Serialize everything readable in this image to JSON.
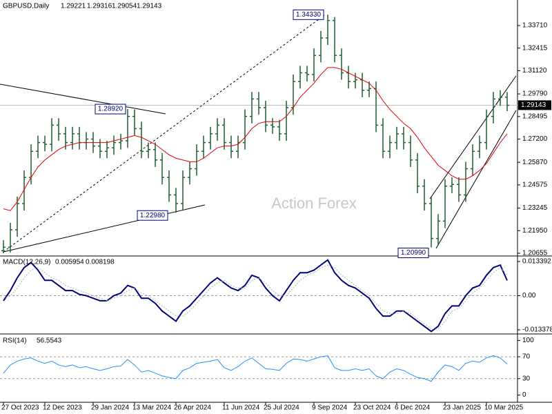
{
  "chart_data": [
    {
      "type": "ohlc",
      "title": "GBPUSD,Daily",
      "quote": {
        "open": 1.29221,
        "high": 1.29316,
        "low": 1.29054,
        "close": 1.29143
      },
      "watermark": "Action Forex",
      "color": "#1d5e33",
      "categories": [
        "27 Oct 2023",
        null,
        null,
        null,
        null,
        null,
        "12 Dec 2023",
        null,
        null,
        null,
        null,
        null,
        null,
        "29 Jan 2024",
        null,
        null,
        null,
        null,
        null,
        "13 Mar 2024",
        null,
        null,
        null,
        null,
        null,
        "26 Apr 2024",
        null,
        null,
        null,
        null,
        null,
        null,
        "11 Jun 2024",
        null,
        null,
        null,
        null,
        null,
        "25 Jul 2024",
        null,
        null,
        null,
        null,
        null,
        null,
        "9 Sep 2024",
        null,
        null,
        null,
        null,
        null,
        "23 Oct 2024",
        null,
        null,
        null,
        null,
        null,
        "6 Dec 2024",
        null,
        null,
        null,
        null,
        null,
        null,
        "23 Jan 2025",
        null,
        null,
        null,
        null,
        null,
        "10 Mar 2025",
        null,
        null,
        null
      ],
      "open": [
        1.208,
        1.21,
        1.22,
        1.235,
        1.25,
        1.265,
        1.27,
        1.269,
        1.28,
        1.275,
        1.27,
        1.275,
        1.27,
        1.272,
        1.268,
        1.265,
        1.267,
        1.27,
        1.271,
        1.285,
        1.278,
        1.265,
        1.266,
        1.26,
        1.25,
        1.24,
        1.235,
        1.25,
        1.255,
        1.265,
        1.27,
        1.275,
        1.28,
        1.27,
        1.265,
        1.27,
        1.285,
        1.295,
        1.29,
        1.28,
        1.279,
        1.275,
        1.29,
        1.305,
        1.31,
        1.309,
        1.32,
        1.33,
        1.34,
        1.32,
        1.31,
        1.305,
        1.306,
        1.3,
        1.301,
        1.28,
        1.265,
        1.27,
        1.275,
        1.27,
        1.26,
        1.245,
        1.235,
        1.215,
        1.225,
        1.245,
        1.246,
        1.24,
        1.255,
        1.265,
        1.27,
        1.285,
        1.295,
        1.296
      ],
      "high": [
        1.214,
        1.224,
        1.239,
        1.254,
        1.269,
        1.274,
        1.274,
        1.284,
        1.284,
        1.279,
        1.279,
        1.279,
        1.276,
        1.276,
        1.272,
        1.271,
        1.274,
        1.275,
        1.2892,
        1.289,
        1.282,
        1.27,
        1.27,
        1.264,
        1.254,
        1.244,
        1.254,
        1.259,
        1.269,
        1.274,
        1.279,
        1.284,
        1.284,
        1.274,
        1.274,
        1.289,
        1.299,
        1.299,
        1.294,
        1.284,
        1.283,
        1.294,
        1.309,
        1.314,
        1.314,
        1.324,
        1.334,
        1.3433,
        1.342,
        1.324,
        1.314,
        1.31,
        1.31,
        1.305,
        1.305,
        1.284,
        1.274,
        1.279,
        1.279,
        1.274,
        1.264,
        1.249,
        1.239,
        1.229,
        1.249,
        1.25,
        1.25,
        1.259,
        1.269,
        1.274,
        1.289,
        1.299,
        1.3,
        1.299
      ],
      "low": [
        1.2066,
        1.207,
        1.216,
        1.231,
        1.246,
        1.261,
        1.265,
        1.265,
        1.271,
        1.266,
        1.266,
        1.266,
        1.266,
        1.264,
        1.261,
        1.261,
        1.263,
        1.266,
        1.267,
        1.274,
        1.261,
        1.261,
        1.256,
        1.246,
        1.236,
        1.2298,
        1.231,
        1.246,
        1.251,
        1.261,
        1.266,
        1.271,
        1.266,
        1.261,
        1.261,
        1.266,
        1.281,
        1.286,
        1.276,
        1.275,
        1.271,
        1.271,
        1.286,
        1.301,
        1.305,
        1.305,
        1.316,
        1.326,
        1.316,
        1.306,
        1.301,
        1.301,
        1.296,
        1.296,
        1.276,
        1.261,
        1.261,
        1.266,
        1.266,
        1.256,
        1.241,
        1.231,
        1.2099,
        1.211,
        1.221,
        1.241,
        1.236,
        1.236,
        1.251,
        1.261,
        1.266,
        1.281,
        1.291,
        1.288
      ],
      "close": [
        1.21,
        1.22,
        1.235,
        1.25,
        1.265,
        1.27,
        1.269,
        1.28,
        1.275,
        1.27,
        1.275,
        1.27,
        1.272,
        1.268,
        1.265,
        1.267,
        1.27,
        1.271,
        1.285,
        1.278,
        1.265,
        1.266,
        1.26,
        1.25,
        1.24,
        1.235,
        1.25,
        1.255,
        1.265,
        1.27,
        1.275,
        1.28,
        1.27,
        1.265,
        1.27,
        1.285,
        1.295,
        1.29,
        1.28,
        1.279,
        1.275,
        1.29,
        1.305,
        1.31,
        1.309,
        1.32,
        1.33,
        1.34,
        1.32,
        1.31,
        1.305,
        1.306,
        1.3,
        1.301,
        1.28,
        1.265,
        1.27,
        1.275,
        1.27,
        1.26,
        1.245,
        1.235,
        1.215,
        1.225,
        1.245,
        1.246,
        1.24,
        1.255,
        1.265,
        1.27,
        1.285,
        1.295,
        1.296,
        1.2914
      ],
      "moving_average": {
        "color": "#e00000",
        "values": [
          1.232,
          1.231,
          1.236,
          1.243,
          1.25,
          1.256,
          1.26,
          1.263,
          1.266,
          1.268,
          1.269,
          1.27,
          1.27,
          1.27,
          1.27,
          1.27,
          1.271,
          1.272,
          1.273,
          1.274,
          1.273,
          1.271,
          1.269,
          1.266,
          1.263,
          1.261,
          1.26,
          1.259,
          1.259,
          1.261,
          1.264,
          1.267,
          1.268,
          1.268,
          1.269,
          1.273,
          1.278,
          1.281,
          1.282,
          1.282,
          1.282,
          1.285,
          1.29,
          1.296,
          1.3,
          1.304,
          1.309,
          1.313,
          1.313,
          1.312,
          1.31,
          1.308,
          1.306,
          1.304,
          1.3,
          1.294,
          1.289,
          1.285,
          1.281,
          1.278,
          1.273,
          1.267,
          1.262,
          1.257,
          1.254,
          1.251,
          1.249,
          1.249,
          1.251,
          1.254,
          1.258,
          1.264,
          1.27,
          1.275
        ]
      },
      "annotations": [
        {
          "value": 1.3433,
          "label": "1.34330"
        },
        {
          "value": 1.2892,
          "label": "1.28920"
        },
        {
          "value": 1.2298,
          "label": "1.22980"
        },
        {
          "value": 1.2099,
          "label": "1.20990"
        }
      ],
      "ylim": [
        1.20536,
        1.35095
      ],
      "yticks": [
        {
          "value": 1.3371,
          "label": "1.33710"
        },
        {
          "value": 1.32415,
          "label": "1.32415"
        },
        {
          "value": 1.3112,
          "label": "1.31120"
        },
        {
          "value": 1.2979,
          "label": "1.29790"
        },
        {
          "value": 1.28495,
          "label": "1.28495"
        },
        {
          "value": 1.272,
          "label": "1.27200"
        },
        {
          "value": 1.2587,
          "label": "1.25870"
        },
        {
          "value": 1.24575,
          "label": "1.24575"
        },
        {
          "value": 1.23245,
          "label": "1.23245"
        },
        {
          "value": 1.2195,
          "label": "1.21950"
        },
        {
          "value": 1.20655,
          "label": "1.20655"
        }
      ],
      "grid": false
    },
    {
      "type": "line",
      "title": "MACD(12,26,9)",
      "ylim": [
        -0.01445,
        0.015
      ],
      "yticks": [
        0.013392,
        {
          "value": 0,
          "label": "0.00"
        },
        -0.013378
      ],
      "grid": true,
      "series": [
        {
          "color": "#00007a",
          "values": [
            -0.002,
            0.002,
            0.007,
            0.011,
            0.013,
            0.01,
            0.006,
            0.006,
            0.004,
            0.002,
            0.002,
            0.0005,
            0,
            -0.001,
            -0.002,
            -0.002,
            0,
            0.001,
            0.004,
            0.003,
            -0.001,
            -0.001,
            -0.003,
            -0.006,
            -0.008,
            -0.01,
            -0.006,
            -0.004,
            -0.001,
            0.002,
            0.005,
            0.007,
            0.005,
            0.003,
            0.002,
            0.004,
            0.008,
            0.007,
            0.003,
            0,
            -0.002,
            0.002,
            0.006,
            0.009,
            0.009,
            0.01,
            0.012,
            0.014,
            0.009,
            0.006,
            0.004,
            0.003,
            0.001,
            -0.001,
            -0.005,
            -0.008,
            -0.008,
            -0.006,
            -0.006,
            -0.008,
            -0.01,
            -0.012,
            -0.014,
            -0.012,
            -0.007,
            -0.004,
            -0.004,
            0,
            0.003,
            0.004,
            0.008,
            0.011,
            0.012,
            0.005954
          ]
        },
        {
          "color": "#b0b0b0",
          "values": [
            -0.001,
            0,
            0.003,
            0.007,
            0.01,
            0.011,
            0.009,
            0.007,
            0.006,
            0.004,
            0.003,
            0.002,
            0.001,
            0,
            -0.001,
            -0.002,
            -0.001,
            0,
            0.002,
            0.003,
            0.001,
            0,
            -0.002,
            -0.004,
            -0.006,
            -0.008,
            -0.008,
            -0.006,
            -0.003,
            0,
            0.003,
            0.005,
            0.006,
            0.004,
            0.003,
            0.003,
            0.006,
            0.007,
            0.005,
            0.002,
            0,
            0,
            0.003,
            0.006,
            0.008,
            0.009,
            0.011,
            0.012,
            0.011,
            0.008,
            0.006,
            0.004,
            0.002,
            0,
            -0.003,
            -0.006,
            -0.007,
            -0.007,
            -0.006,
            -0.007,
            -0.009,
            -0.011,
            -0.013,
            -0.013,
            -0.01,
            -0.006,
            -0.005,
            -0.002,
            0.001,
            0.003,
            0.006,
            0.009,
            0.011,
            0.008198
          ]
        }
      ]
    },
    {
      "type": "line",
      "title": "RSI(14)",
      "ylim": [
        -12,
        108
      ],
      "yticks": [
        100,
        70,
        30,
        0
      ],
      "grid": true,
      "series": [
        {
          "color": "#1e90ff",
          "values": [
            40,
            55,
            62,
            66,
            68,
            62,
            58,
            62,
            55,
            52,
            55,
            50,
            52,
            48,
            45,
            48,
            52,
            53,
            65,
            55,
            42,
            45,
            40,
            35,
            32,
            30,
            45,
            50,
            58,
            60,
            62,
            65,
            50,
            45,
            52,
            62,
            68,
            58,
            48,
            47,
            45,
            58,
            66,
            65,
            62,
            66,
            70,
            72,
            50,
            45,
            45,
            48,
            45,
            48,
            35,
            30,
            42,
            48,
            45,
            38,
            32,
            30,
            25,
            42,
            55,
            52,
            45,
            58,
            62,
            60,
            68,
            72,
            68,
            56.5543
          ]
        }
      ]
    }
  ]
}
